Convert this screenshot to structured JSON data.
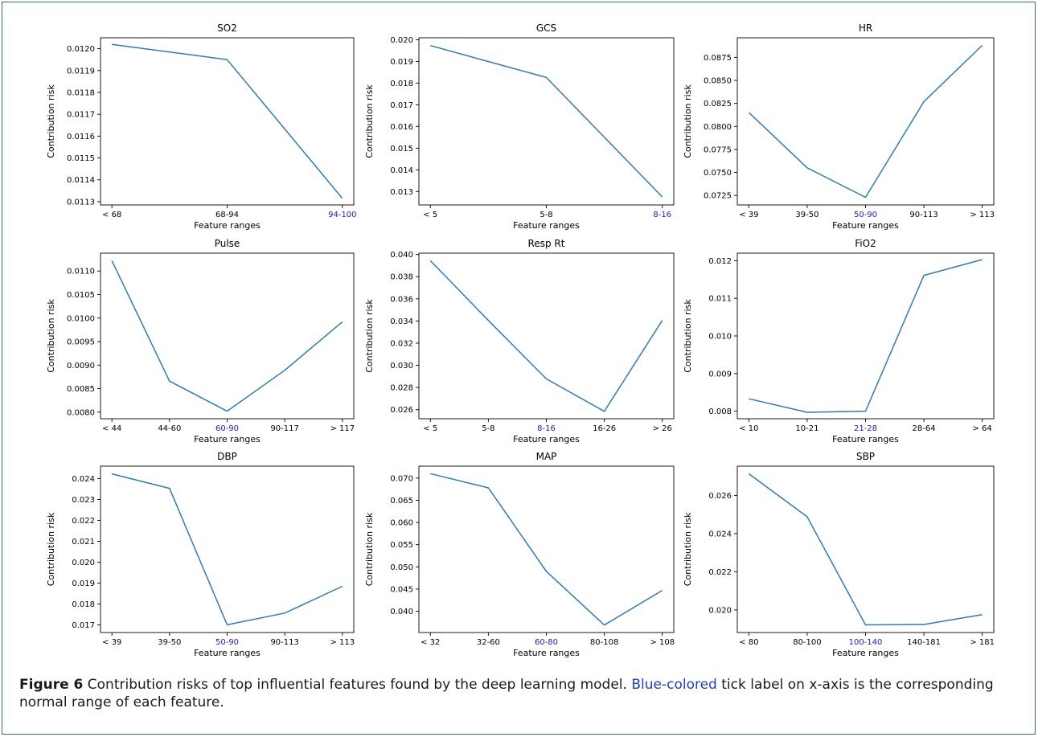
{
  "caption": {
    "label": "Figure 6",
    "text_before": "Contribution risks of top influential features found by the deep learning model.",
    "highlight": "Blue-colored",
    "text_after": "tick label on x-axis is the corresponding normal range of each feature."
  },
  "colors": {
    "line": "#2e7bb6",
    "highlight": "#1a1ad6",
    "axis": "#000000",
    "caption_highlight": "#1a3fd6"
  },
  "chart_data": [
    {
      "type": "line",
      "title": "SO2",
      "xlabel": "Feature ranges",
      "ylabel": "Contribution risk",
      "categories": [
        "< 68",
        "68-94",
        "94-100"
      ],
      "highlight_index": 2,
      "values": [
        0.01202,
        0.01195,
        0.011315
      ],
      "ylim": [
        0.011285,
        0.01205
      ],
      "yticks": [
        0.0113,
        0.0114,
        0.0115,
        0.0116,
        0.0117,
        0.0118,
        0.0119,
        0.012
      ],
      "ydecimals": 4
    },
    {
      "type": "line",
      "title": "GCS",
      "xlabel": "Feature ranges",
      "ylabel": "Contribution risk",
      "categories": [
        "< 5",
        "5-8",
        "8-16"
      ],
      "highlight_index": 2,
      "values": [
        0.01973,
        0.01826,
        0.01275
      ],
      "ylim": [
        0.01238,
        0.02009
      ],
      "yticks": [
        0.013,
        0.014,
        0.015,
        0.016,
        0.017,
        0.018,
        0.019,
        0.02
      ],
      "ydecimals": 3
    },
    {
      "type": "line",
      "title": "HR",
      "xlabel": "Feature ranges",
      "ylabel": "Contribution risk",
      "categories": [
        "< 39",
        "39-50",
        "50-90",
        "90-113",
        "> 113"
      ],
      "highlight_index": 2,
      "values": [
        0.0815,
        0.0755,
        0.0723,
        0.0827,
        0.0888
      ],
      "ylim": [
        0.07147,
        0.08963
      ],
      "yticks": [
        0.0725,
        0.075,
        0.0775,
        0.08,
        0.0825,
        0.085,
        0.0875
      ],
      "ydecimals": 4
    },
    {
      "type": "line",
      "title": "Pulse",
      "xlabel": "Feature ranges",
      "ylabel": "Contribution risk",
      "categories": [
        "< 44",
        "44-60",
        "60-90",
        "90-117",
        "> 117"
      ],
      "highlight_index": 2,
      "values": [
        0.01122,
        0.00866,
        0.00802,
        0.00889,
        0.00992
      ],
      "ylim": [
        0.00786,
        0.01138
      ],
      "yticks": [
        0.008,
        0.0085,
        0.009,
        0.0095,
        0.01,
        0.0105,
        0.011
      ],
      "ydecimals": 4
    },
    {
      "type": "line",
      "title": "Resp Rt",
      "xlabel": "Feature ranges",
      "ylabel": "Contribution risk",
      "categories": [
        "< 5",
        "5-8",
        "8-16",
        "16-26",
        "> 26"
      ],
      "highlight_index": 2,
      "values": [
        0.03944,
        0.03405,
        0.02878,
        0.02585,
        0.03405
      ],
      "ylim": [
        0.02518,
        0.04012
      ],
      "yticks": [
        0.026,
        0.028,
        0.03,
        0.032,
        0.034,
        0.036,
        0.038,
        0.04
      ],
      "ydecimals": 3
    },
    {
      "type": "line",
      "title": "FiO2",
      "xlabel": "Feature ranges",
      "ylabel": "Contribution risk",
      "categories": [
        "< 10",
        "10-21",
        "21-28",
        "28-64",
        "> 64"
      ],
      "highlight_index": 2,
      "values": [
        0.00833,
        0.00797,
        0.008,
        0.01161,
        0.01203
      ],
      "ylim": [
        0.0078,
        0.0122
      ],
      "yticks": [
        0.008,
        0.009,
        0.01,
        0.011,
        0.012
      ],
      "ydecimals": 3
    },
    {
      "type": "line",
      "title": "DBP",
      "xlabel": "Feature ranges",
      "ylabel": "Contribution risk",
      "categories": [
        "< 39",
        "39-50",
        "50-90",
        "90-113",
        "> 113"
      ],
      "highlight_index": 2,
      "values": [
        0.02422,
        0.02353,
        0.01701,
        0.01757,
        0.01885
      ],
      "ylim": [
        0.01664,
        0.02459
      ],
      "yticks": [
        0.017,
        0.018,
        0.019,
        0.02,
        0.021,
        0.022,
        0.023,
        0.024
      ],
      "ydecimals": 3
    },
    {
      "type": "line",
      "title": "MAP",
      "xlabel": "Feature ranges",
      "ylabel": "Contribution risk",
      "categories": [
        "< 32",
        "32-60",
        "60-80",
        "80-108",
        "> 108"
      ],
      "highlight_index": 2,
      "values": [
        0.071,
        0.0678,
        0.049,
        0.0369,
        0.0447
      ],
      "ylim": [
        0.03522,
        0.07268
      ],
      "yticks": [
        0.04,
        0.045,
        0.05,
        0.055,
        0.06,
        0.065,
        0.07
      ],
      "ydecimals": 3
    },
    {
      "type": "line",
      "title": "SBP",
      "xlabel": "Feature ranges",
      "ylabel": "Contribution risk",
      "categories": [
        "< 80",
        "80-100",
        "100-140",
        "140-181",
        "> 181"
      ],
      "highlight_index": 2,
      "values": [
        0.02713,
        0.02488,
        0.01922,
        0.01924,
        0.01976
      ],
      "ylim": [
        0.01882,
        0.02753
      ],
      "yticks": [
        0.02,
        0.022,
        0.024,
        0.026
      ],
      "ydecimals": 3
    }
  ]
}
